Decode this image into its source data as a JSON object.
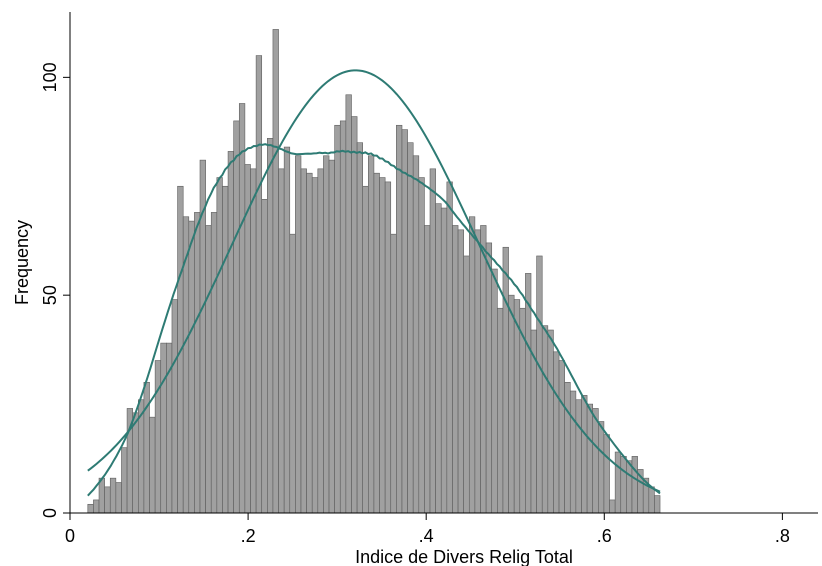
{
  "chart_data": {
    "type": "bar",
    "xlabel": "Indice de Divers Relig Total",
    "ylabel": "Frequency",
    "xlim": [
      0,
      0.84
    ],
    "ylim": [
      0,
      115
    ],
    "xticks": [
      {
        "value": 0,
        "label": "0"
      },
      {
        "value": 0.2,
        "label": ".2"
      },
      {
        "value": 0.4,
        "label": ".4"
      },
      {
        "value": 0.6,
        "label": ".6"
      },
      {
        "value": 0.8,
        "label": ".8"
      }
    ],
    "yticks": [
      {
        "value": 0,
        "label": "0"
      },
      {
        "value": 50,
        "label": "50"
      },
      {
        "value": 100,
        "label": "100"
      }
    ],
    "bin_start": 0.02,
    "bin_width": 0.0063,
    "values": [
      2,
      3,
      8,
      6,
      8,
      7,
      15,
      24,
      23,
      26,
      30,
      22,
      35,
      39,
      39,
      49,
      75,
      68,
      67,
      69,
      81,
      66,
      69,
      77,
      75,
      83,
      90,
      94,
      80,
      79,
      105,
      72,
      86,
      111,
      79,
      84,
      64,
      82,
      79,
      78,
      77,
      79,
      82,
      81,
      89,
      90,
      96,
      91,
      85,
      75,
      82,
      78,
      77,
      76,
      64,
      89,
      88,
      85,
      82,
      77,
      66,
      79,
      71,
      70,
      76,
      66,
      65,
      59,
      68,
      65,
      66,
      62,
      56,
      47,
      61,
      50,
      49,
      47,
      55,
      42,
      59,
      43,
      42,
      37,
      35,
      30,
      28,
      26,
      27,
      25,
      24,
      21,
      18,
      3,
      14,
      13,
      12,
      13,
      10,
      8,
      6,
      4
    ]
  },
  "colors": {
    "bar_fill": "#a0a0a0",
    "bar_stroke": "#5c5c5c",
    "curve": "#2e7b74"
  }
}
